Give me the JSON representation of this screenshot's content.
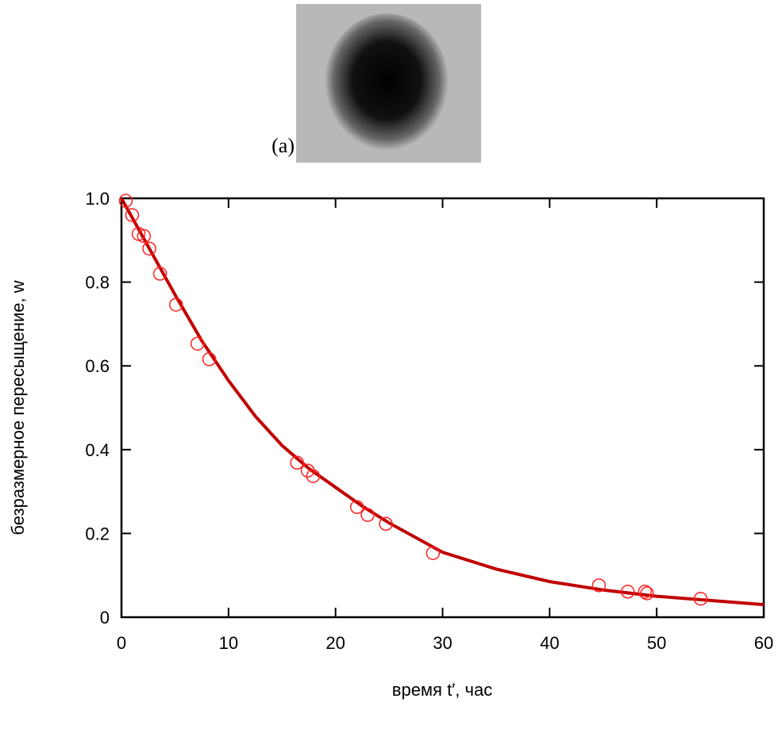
{
  "panel_label": "(a)",
  "chart_data": {
    "type": "scatter",
    "xlabel": "время t′, час",
    "ylabel": "безразмерное пересыщение, w",
    "xlim": [
      0,
      60
    ],
    "xticks": [
      0,
      10,
      20,
      30,
      40,
      50,
      60
    ],
    "ylim": [
      0,
      1
    ],
    "yticks": [
      0,
      0.2,
      0.4,
      0.6,
      0.8,
      {
        "value": 1,
        "label": "1.0"
      }
    ],
    "points": {
      "color": "#ff2020",
      "x": [
        0.4,
        1.0,
        1.6,
        2.1,
        2.6,
        3.6,
        5.1,
        7.1,
        8.2,
        16.4,
        17.4,
        17.9,
        22.0,
        23.0,
        24.7,
        29.1,
        44.6,
        47.3,
        48.9,
        49.1,
        54.1
      ],
      "y": [
        0.994,
        0.96,
        0.915,
        0.91,
        0.88,
        0.82,
        0.746,
        0.653,
        0.616,
        0.369,
        0.35,
        0.337,
        0.263,
        0.244,
        0.223,
        0.153,
        0.076,
        0.061,
        0.061,
        0.057,
        0.044
      ]
    },
    "fit": {
      "color": "#c00000",
      "x": [
        0,
        2.5,
        5,
        7.5,
        10,
        12.5,
        15,
        17.5,
        20,
        22.5,
        25,
        30,
        35,
        40,
        45,
        50,
        55,
        60
      ],
      "y": [
        1.0,
        0.885,
        0.77,
        0.66,
        0.565,
        0.48,
        0.41,
        0.355,
        0.31,
        0.265,
        0.225,
        0.155,
        0.115,
        0.085,
        0.065,
        0.05,
        0.04,
        0.03
      ]
    }
  }
}
